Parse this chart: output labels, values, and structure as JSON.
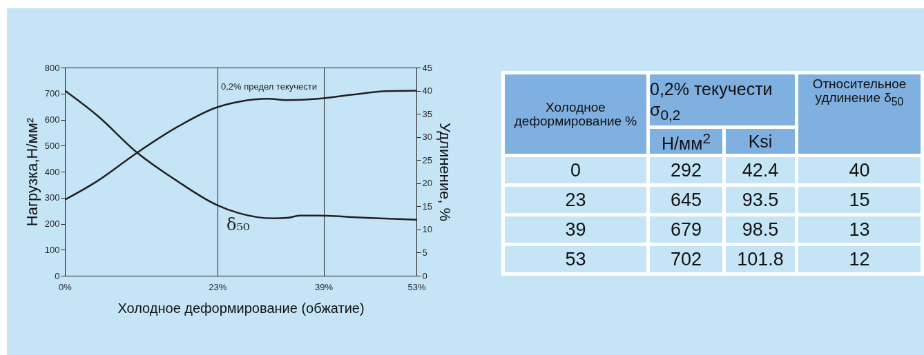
{
  "chart_data": [
    {
      "type": "line",
      "xlabel": "Холодное деформирование (обжатие)",
      "ylabel": "Нагрузка,Н/мм²",
      "y2label": "Удлинение, %",
      "xlim": [
        0,
        53
      ],
      "xticks": [
        {
          "value": 0,
          "label": "0%"
        },
        {
          "value": 23,
          "label": "23%"
        },
        {
          "value": 39,
          "label": "39%"
        },
        {
          "value": 53,
          "label": "53%"
        }
      ],
      "ylim": [
        0,
        800
      ],
      "yticks": [
        0,
        100,
        200,
        300,
        400,
        500,
        600,
        700,
        800
      ],
      "y2lim": [
        0,
        45
      ],
      "y2ticks": [
        0,
        5,
        10,
        15,
        20,
        25,
        30,
        35,
        40,
        45
      ],
      "grid": "x",
      "line_style": "solid",
      "marker": "none",
      "series": [
        {
          "name": "0,2% предел текучести",
          "color": "#231f20",
          "x": [
            0,
            4.9,
            10.9,
            16.9,
            22.9,
            26.3,
            30.6,
            33.5,
            38.2,
            43.4,
            48.5,
            53
          ],
          "values": [
            292,
            364,
            473,
            571,
            647,
            669,
            680,
            675,
            680,
            696,
            709,
            711
          ]
        },
        {
          "name": "δ₅₀",
          "color": "#231f20",
          "axis": "y2",
          "x": [
            0,
            4.9,
            10.9,
            16.9,
            22.9,
            26.3,
            31.4,
            33.5,
            35.4,
            38.2,
            45.5,
            53
          ],
          "values": [
            40,
            34.6,
            26.6,
            20.5,
            15.3,
            13.5,
            12.4,
            12.5,
            13.0,
            13.0,
            12.5,
            12.1
          ]
        }
      ]
    },
    {
      "type": "other",
      "categories": [
        "Холодное деформирование %",
        "0,2% текучести σ$_{0,2}$",
        "Относительное удлинение δ$_{50}$",
        "Н/мм$^{2}$",
        "Ksi"
      ],
      "cell_labels": [
        [
          "0",
          "292",
          "42.4",
          "40"
        ],
        [
          "23",
          "645",
          "93.5",
          "15"
        ],
        [
          "39",
          "679",
          "98.5",
          "13"
        ],
        [
          "53",
          "702",
          "101.8",
          "12"
        ]
      ]
    }
  ]
}
